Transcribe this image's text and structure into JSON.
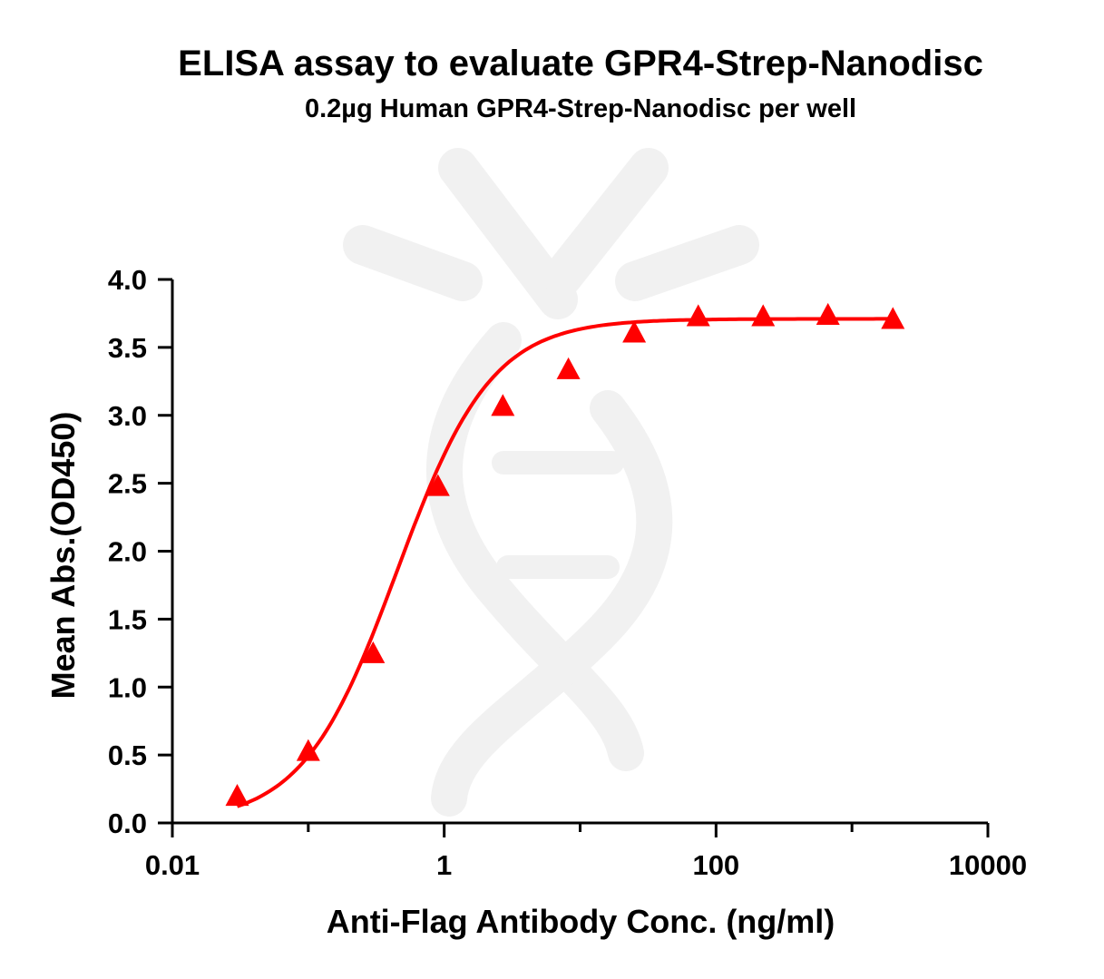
{
  "chart_data": {
    "type": "scatter",
    "title": "ELISA assay to evaluate GPR4-Strep-Nanodisc",
    "subtitle": "0.2µg Human GPR4-Strep-Nanodisc per well",
    "xlabel": "Anti-Flag Antibody Conc. (ng/ml)",
    "ylabel": "Mean Abs.(OD450)",
    "x_scale": "log",
    "xlim": [
      0.01,
      10000
    ],
    "ylim": [
      0,
      4.0
    ],
    "x_ticks": [
      0.01,
      1,
      100,
      10000
    ],
    "x_tick_labels": [
      "0.01",
      "1",
      "100",
      "10000"
    ],
    "y_ticks": [
      0,
      0.5,
      1.0,
      1.5,
      2.0,
      2.5,
      3.0,
      3.5,
      4.0
    ],
    "y_tick_labels": [
      "0.0",
      "0.5",
      "1.0",
      "1.5",
      "2.0",
      "2.5",
      "3.0",
      "3.5",
      "4.0"
    ],
    "grid": false,
    "legend": "none",
    "series": [
      {
        "marker": "triangle",
        "color": "#ff0000",
        "fit": "4PL",
        "x": [
          0.03,
          0.1,
          0.3,
          0.9,
          2.7,
          8.2,
          25,
          74,
          222,
          666,
          2000
        ],
        "y": [
          0.2,
          0.53,
          1.25,
          2.48,
          3.07,
          3.34,
          3.61,
          3.73,
          3.73,
          3.74,
          3.71
        ]
      }
    ]
  }
}
